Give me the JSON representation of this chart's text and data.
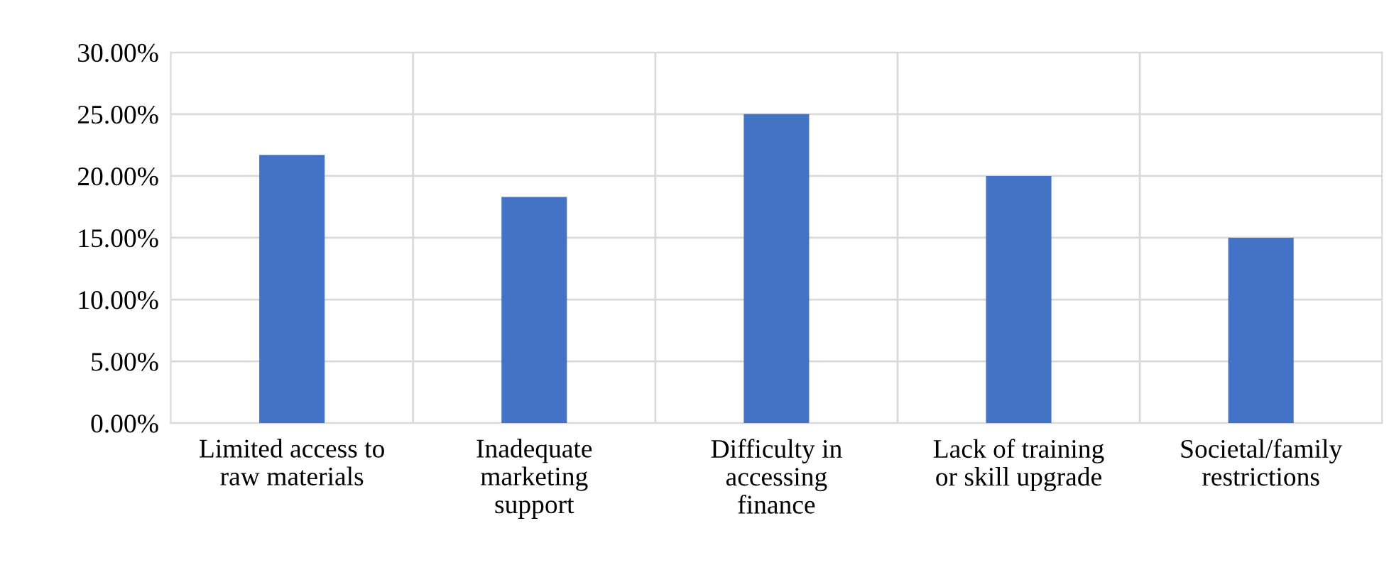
{
  "chart_data": {
    "type": "bar",
    "categories": [
      "Limited access to\nraw materials",
      "Inadequate\nmarketing\nsupport",
      "Difficulty in\naccessing\nfinance",
      "Lack of training\nor skill upgrade",
      "Societal/family\nrestrictions"
    ],
    "values": [
      21.7,
      18.3,
      25,
      20,
      15
    ],
    "color": "#4472c4",
    "ylim": [
      0,
      30
    ],
    "yticks": [
      {
        "value": 0,
        "label": "0.00%"
      },
      {
        "value": 5,
        "label": "5.00%"
      },
      {
        "value": 10,
        "label": "10.00%"
      },
      {
        "value": 15,
        "label": "15.00%"
      },
      {
        "value": 20,
        "label": "20.00%"
      },
      {
        "value": 25,
        "label": "25.00%"
      },
      {
        "value": 30,
        "label": "30.00%"
      }
    ],
    "grid": true,
    "legend": false
  }
}
